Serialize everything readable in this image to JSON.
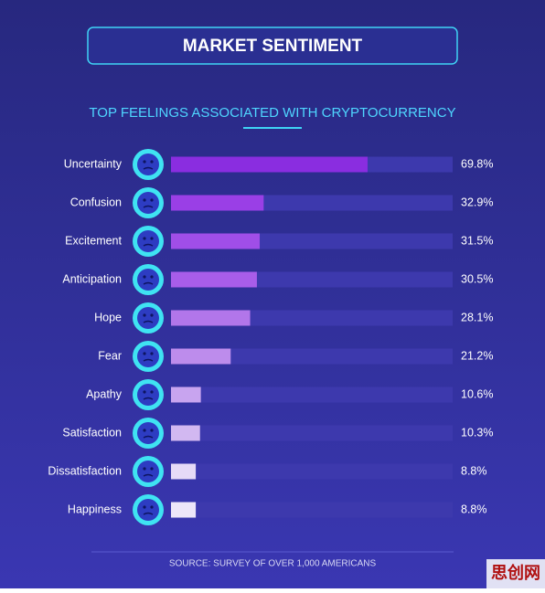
{
  "chart_data": {
    "type": "hbar",
    "title": "MARKET SENTIMENT",
    "subtitle": "TOP FEELINGS ASSOCIATED WITH CRYPTOCURRENCY",
    "source": "SOURCE: SURVEY OF OVER 1,000 AMERICANS",
    "watermark": "思创网",
    "categories": [
      "Uncertainty",
      "Confusion",
      "Excitement",
      "Anticipation",
      "Hope",
      "Fear",
      "Apathy",
      "Satisfaction",
      "Dissatisfaction",
      "Happiness"
    ],
    "values": [
      69.8,
      32.9,
      31.5,
      30.5,
      28.1,
      21.2,
      10.6,
      10.3,
      8.8,
      8.8
    ],
    "value_labels": [
      "69.8%",
      "32.9%",
      "31.5%",
      "30.5%",
      "28.1%",
      "21.2%",
      "10.6%",
      "10.3%",
      "8.8%",
      "8.8%"
    ],
    "colors": [
      "#8a2de0",
      "#9a3fe6",
      "#a04ee8",
      "#a85de9",
      "#b276ea",
      "#bd8cec",
      "#c8a4ef",
      "#d2b8f1",
      "#e6dbf7",
      "#ede6f9"
    ],
    "xlim": [
      0,
      100
    ]
  }
}
